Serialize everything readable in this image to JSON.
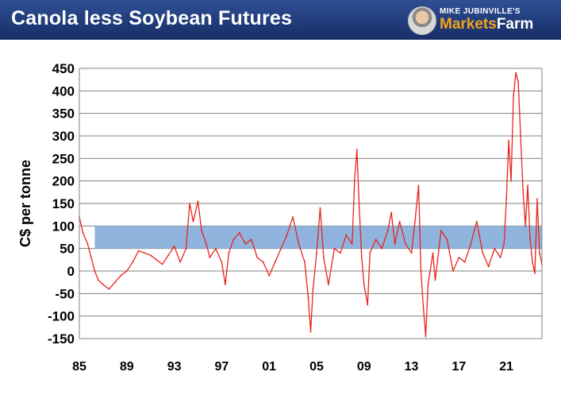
{
  "header": {
    "title": "Canola less Soybean Futures",
    "brand_sub": "MIKE JUBINVILLE'S",
    "brand_a": "Markets",
    "brand_b": "Farm"
  },
  "colors": {
    "banner": "#1f3a78",
    "line": "#e8231c",
    "band": "#8fb4de",
    "grid": "#808080"
  },
  "chart_data": {
    "type": "line",
    "title": "",
    "xlabel": "",
    "ylabel": "C$ per tonne",
    "ylim": [
      -150,
      450
    ],
    "yticks": [
      450,
      400,
      350,
      300,
      250,
      200,
      150,
      100,
      50,
      0,
      -50,
      -100,
      -150
    ],
    "xlim": [
      1985,
      2024
    ],
    "xticks": [
      {
        "year": 1985,
        "label": "85"
      },
      {
        "year": 1989,
        "label": "89"
      },
      {
        "year": 1993,
        "label": "93"
      },
      {
        "year": 1997,
        "label": "97"
      },
      {
        "year": 2001,
        "label": "01"
      },
      {
        "year": 2005,
        "label": "05"
      },
      {
        "year": 2009,
        "label": "09"
      },
      {
        "year": 2013,
        "label": "13"
      },
      {
        "year": 2017,
        "label": "17"
      },
      {
        "year": 2021,
        "label": "21"
      }
    ],
    "grid": "horizontal",
    "shaded_band": {
      "from_year": 1986.3,
      "to_year": 2024,
      "low": 50,
      "high": 100
    },
    "series": [
      {
        "points": [
          [
            1985.0,
            120
          ],
          [
            1985.3,
            85
          ],
          [
            1985.7,
            60
          ],
          [
            1986.0,
            30
          ],
          [
            1986.3,
            0
          ],
          [
            1986.6,
            -20
          ],
          [
            1987.0,
            -30
          ],
          [
            1987.5,
            -40
          ],
          [
            1988.0,
            -25
          ],
          [
            1988.5,
            -10
          ],
          [
            1989.0,
            0
          ],
          [
            1989.5,
            20
          ],
          [
            1990.0,
            45
          ],
          [
            1990.5,
            40
          ],
          [
            1991.0,
            35
          ],
          [
            1991.5,
            25
          ],
          [
            1992.0,
            15
          ],
          [
            1992.5,
            35
          ],
          [
            1993.0,
            55
          ],
          [
            1993.5,
            20
          ],
          [
            1994.0,
            50
          ],
          [
            1994.3,
            150
          ],
          [
            1994.6,
            110
          ],
          [
            1995.0,
            155
          ],
          [
            1995.3,
            90
          ],
          [
            1995.7,
            60
          ],
          [
            1996.0,
            30
          ],
          [
            1996.5,
            50
          ],
          [
            1997.0,
            20
          ],
          [
            1997.3,
            -30
          ],
          [
            1997.6,
            40
          ],
          [
            1998.0,
            70
          ],
          [
            1998.5,
            85
          ],
          [
            1999.0,
            60
          ],
          [
            1999.5,
            70
          ],
          [
            2000.0,
            30
          ],
          [
            2000.5,
            20
          ],
          [
            2001.0,
            -10
          ],
          [
            2001.5,
            20
          ],
          [
            2002.0,
            50
          ],
          [
            2002.5,
            80
          ],
          [
            2003.0,
            120
          ],
          [
            2003.5,
            60
          ],
          [
            2004.0,
            20
          ],
          [
            2004.3,
            -60
          ],
          [
            2004.5,
            -135
          ],
          [
            2004.7,
            -40
          ],
          [
            2005.0,
            40
          ],
          [
            2005.3,
            140
          ],
          [
            2005.6,
            30
          ],
          [
            2006.0,
            -30
          ],
          [
            2006.5,
            50
          ],
          [
            2007.0,
            40
          ],
          [
            2007.5,
            80
          ],
          [
            2008.0,
            60
          ],
          [
            2008.2,
            200
          ],
          [
            2008.4,
            270
          ],
          [
            2008.6,
            140
          ],
          [
            2008.8,
            30
          ],
          [
            2009.0,
            -30
          ],
          [
            2009.3,
            -75
          ],
          [
            2009.5,
            40
          ],
          [
            2010.0,
            70
          ],
          [
            2010.5,
            50
          ],
          [
            2011.0,
            90
          ],
          [
            2011.3,
            130
          ],
          [
            2011.6,
            60
          ],
          [
            2012.0,
            110
          ],
          [
            2012.5,
            60
          ],
          [
            2013.0,
            40
          ],
          [
            2013.3,
            110
          ],
          [
            2013.6,
            190
          ],
          [
            2013.8,
            0
          ],
          [
            2014.0,
            -80
          ],
          [
            2014.2,
            -145
          ],
          [
            2014.4,
            -30
          ],
          [
            2014.8,
            40
          ],
          [
            2015.0,
            -20
          ],
          [
            2015.5,
            90
          ],
          [
            2016.0,
            70
          ],
          [
            2016.5,
            0
          ],
          [
            2017.0,
            30
          ],
          [
            2017.5,
            20
          ],
          [
            2018.0,
            60
          ],
          [
            2018.5,
            110
          ],
          [
            2019.0,
            40
          ],
          [
            2019.5,
            10
          ],
          [
            2020.0,
            50
          ],
          [
            2020.5,
            30
          ],
          [
            2020.8,
            60
          ],
          [
            2021.0,
            160
          ],
          [
            2021.2,
            290
          ],
          [
            2021.4,
            200
          ],
          [
            2021.6,
            390
          ],
          [
            2021.8,
            440
          ],
          [
            2022.0,
            420
          ],
          [
            2022.2,
            300
          ],
          [
            2022.4,
            180
          ],
          [
            2022.6,
            100
          ],
          [
            2022.8,
            190
          ],
          [
            2023.0,
            70
          ],
          [
            2023.2,
            20
          ],
          [
            2023.4,
            -5
          ],
          [
            2023.6,
            160
          ],
          [
            2023.8,
            40
          ],
          [
            2024.0,
            15
          ]
        ]
      }
    ]
  }
}
